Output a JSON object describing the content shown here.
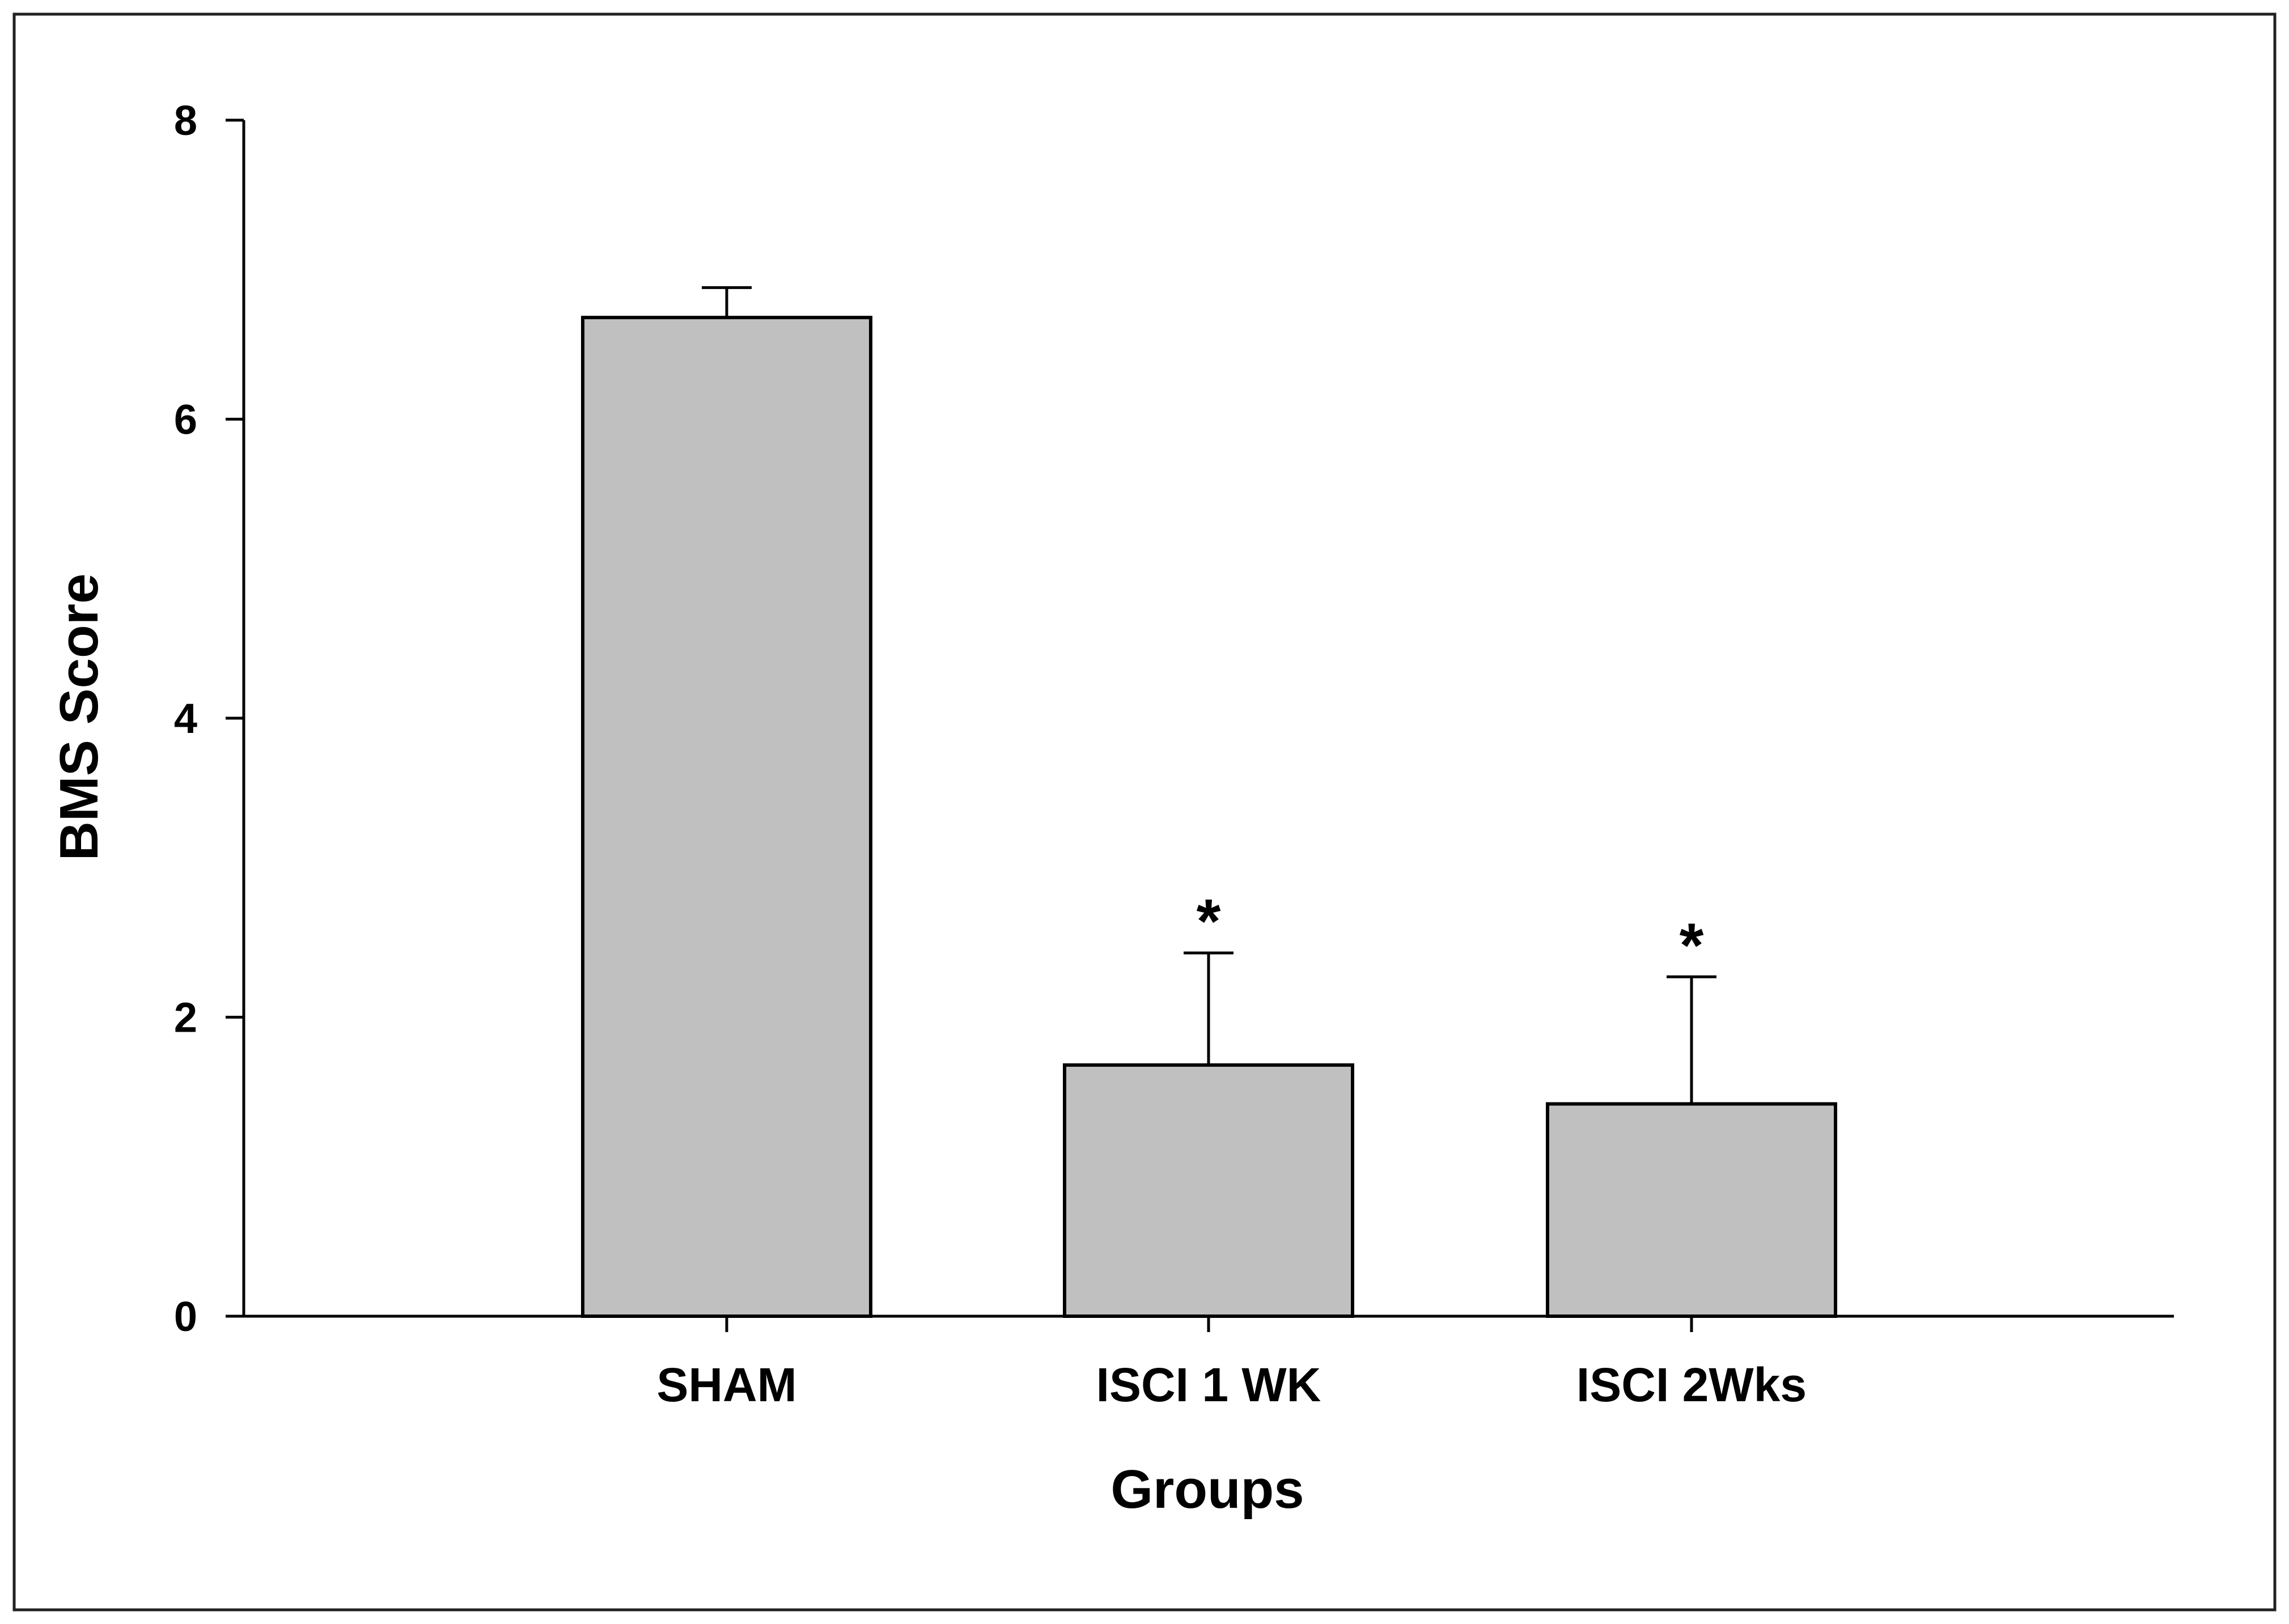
{
  "chart_data": {
    "type": "bar",
    "title": "",
    "xlabel": "Groups",
    "ylabel": "BMS Score",
    "categories": [
      "SHAM",
      "ISCI 1 WK",
      "ISCI 2Wks"
    ],
    "values": [
      6.68,
      1.68,
      1.42
    ],
    "error_plus": [
      0.2,
      0.75,
      0.85
    ],
    "significance": [
      "",
      "*",
      "*"
    ],
    "ylim": [
      0,
      8
    ],
    "yticks": [
      "0",
      "2",
      "4",
      "6",
      "8"
    ],
    "grid": false,
    "legend": "none",
    "bar_color": "#c0c0c0",
    "edge_color": "#000000"
  }
}
